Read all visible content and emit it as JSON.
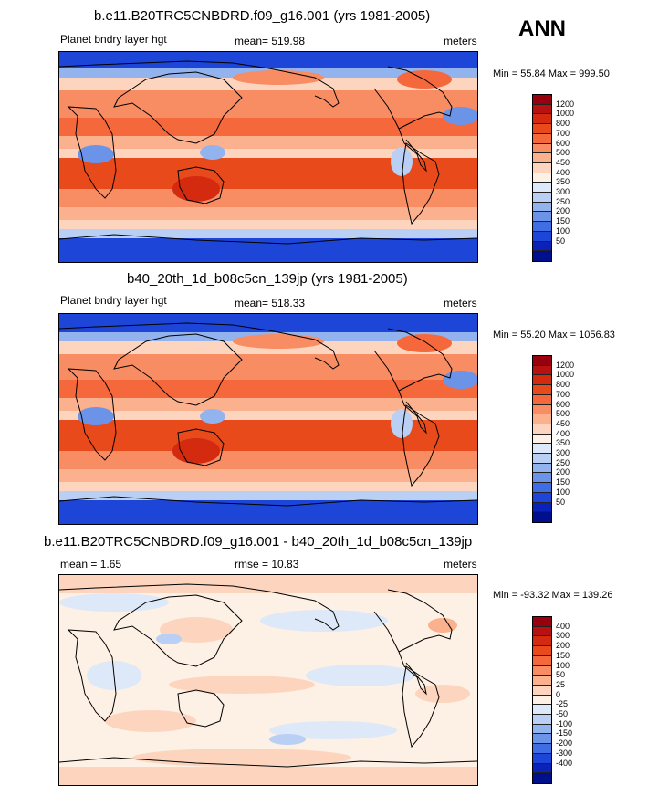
{
  "season": "ANN",
  "panels": [
    {
      "title": "b.e11.B20TRC5CNBDRD.f09_g16.001 (yrs 1981-2005)",
      "left_label": "Planet bndry layer hgt",
      "center_label": "mean= 519.98",
      "right_label": "meters",
      "minmax": "Min = 55.84 Max = 999.50",
      "colorbar_labels": [
        "1200",
        "1000",
        "800",
        "700",
        "600",
        "500",
        "450",
        "400",
        "350",
        "300",
        "250",
        "200",
        "150",
        "100",
        "50"
      ],
      "colorbar_colors": [
        "#99000d",
        "#b81111",
        "#d42a10",
        "#e84a1c",
        "#f4683c",
        "#f88c63",
        "#fbb08e",
        "#fdd5bf",
        "#fdf0e4",
        "#dde8f8",
        "#b9cff3",
        "#93b3ee",
        "#6b93e8",
        "#3f6de3",
        "#1d46d9",
        "#0a22b8",
        "#00108c"
      ],
      "mean": 519.98,
      "min": 55.84,
      "max": 999.5,
      "units": "meters"
    },
    {
      "title": "b40_20th_1d_b08c5cn_139jp (yrs 1981-2005)",
      "left_label": "Planet bndry layer hgt",
      "center_label": "mean= 518.33",
      "right_label": "meters",
      "minmax": "Min = 55.20 Max = 1056.83",
      "colorbar_labels": [
        "1200",
        "1000",
        "800",
        "700",
        "600",
        "500",
        "450",
        "400",
        "350",
        "300",
        "250",
        "200",
        "150",
        "100",
        "50"
      ],
      "colorbar_colors": [
        "#99000d",
        "#b81111",
        "#d42a10",
        "#e84a1c",
        "#f4683c",
        "#f88c63",
        "#fbb08e",
        "#fdd5bf",
        "#fdf0e4",
        "#dde8f8",
        "#b9cff3",
        "#93b3ee",
        "#6b93e8",
        "#3f6de3",
        "#1d46d9",
        "#0a22b8",
        "#00108c"
      ],
      "mean": 518.33,
      "min": 55.2,
      "max": 1056.83,
      "units": "meters"
    },
    {
      "title": "b.e11.B20TRC5CNBDRD.f09_g16.001 - b40_20th_1d_b08c5cn_139jp",
      "left_label": "mean =   1.65",
      "center_label": "rmse =  10.83",
      "right_label": "meters",
      "minmax": "Min = -93.32 Max = 139.26",
      "colorbar_labels": [
        "400",
        "300",
        "200",
        "150",
        "100",
        "50",
        "25",
        "0",
        "-25",
        "-50",
        "-100",
        "-150",
        "-200",
        "-300",
        "-400"
      ],
      "colorbar_colors": [
        "#99000d",
        "#b81111",
        "#d42a10",
        "#e84a1c",
        "#f4683c",
        "#f88c63",
        "#fbb08e",
        "#fdd5bf",
        "#fdf0e4",
        "#dde8f8",
        "#b9cff3",
        "#93b3ee",
        "#6b93e8",
        "#3f6de3",
        "#1d46d9",
        "#0a22b8",
        "#00108c"
      ],
      "mean": 1.65,
      "rmse": 10.83,
      "min": -93.32,
      "max": 139.26,
      "units": "meters"
    }
  ],
  "chart_data": [
    {
      "type": "heatmap",
      "title": "b.e11.B20TRC5CNBDRD.f09_g16.001 (yrs 1981-2005)",
      "variable": "Planet bndry layer hgt",
      "units": "meters",
      "mean": 519.98,
      "min": 55.84,
      "max": 999.5,
      "contour_levels": [
        50,
        100,
        150,
        200,
        250,
        300,
        350,
        400,
        450,
        500,
        600,
        700,
        800,
        1000,
        1200
      ],
      "projection": "cylindrical equidistant, global, centered on Pacific"
    },
    {
      "type": "heatmap",
      "title": "b40_20th_1d_b08c5cn_139jp (yrs 1981-2005)",
      "variable": "Planet bndry layer hgt",
      "units": "meters",
      "mean": 518.33,
      "min": 55.2,
      "max": 1056.83,
      "contour_levels": [
        50,
        100,
        150,
        200,
        250,
        300,
        350,
        400,
        450,
        500,
        600,
        700,
        800,
        1000,
        1200
      ],
      "projection": "cylindrical equidistant, global, centered on Pacific"
    },
    {
      "type": "heatmap",
      "title": "b.e11.B20TRC5CNBDRD.f09_g16.001 - b40_20th_1d_b08c5cn_139jp",
      "units": "meters",
      "mean": 1.65,
      "rmse": 10.83,
      "min": -93.32,
      "max": 139.26,
      "contour_levels": [
        -400,
        -300,
        -200,
        -150,
        -100,
        -50,
        -25,
        0,
        25,
        50,
        100,
        150,
        200,
        300,
        400
      ],
      "projection": "cylindrical equidistant, global, centered on Pacific"
    }
  ]
}
